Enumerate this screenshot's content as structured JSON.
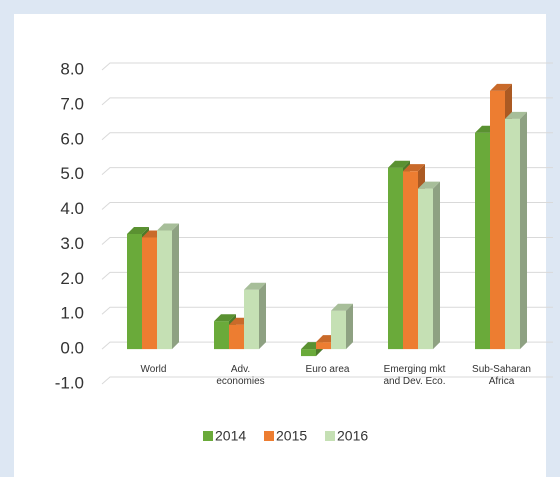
{
  "chart_data": {
    "type": "bar",
    "categories": [
      "World",
      "Adv.\neconomies",
      "Euro area",
      "Emerging mkt\nand Dev. Eco.",
      "Sub-Saharan\nAfrica"
    ],
    "series": [
      {
        "name": "2014",
        "color": "#6aaa3a",
        "values": [
          3.3,
          0.8,
          -0.2,
          5.2,
          6.2
        ]
      },
      {
        "name": "2015",
        "color": "#ed7d31",
        "values": [
          3.2,
          0.7,
          0.2,
          5.1,
          7.4
        ]
      },
      {
        "name": "2016",
        "color": "#c5e0b4",
        "values": [
          3.4,
          1.7,
          1.1,
          4.6,
          6.6
        ]
      }
    ],
    "ylim": [
      -1,
      8
    ],
    "yticks": [
      {
        "value": -1,
        "label": "-1.0"
      },
      {
        "value": 0,
        "label": "0.0"
      },
      {
        "value": 1,
        "label": "1.0"
      },
      {
        "value": 2,
        "label": "2.0"
      },
      {
        "value": 3,
        "label": "3.0"
      },
      {
        "value": 4,
        "label": "4.0"
      },
      {
        "value": 5,
        "label": "5.0"
      },
      {
        "value": 6,
        "label": "6.0"
      },
      {
        "value": 7,
        "label": "7.0"
      },
      {
        "value": 8,
        "label": "8.0"
      }
    ],
    "grid": true,
    "legend": "bottom"
  }
}
